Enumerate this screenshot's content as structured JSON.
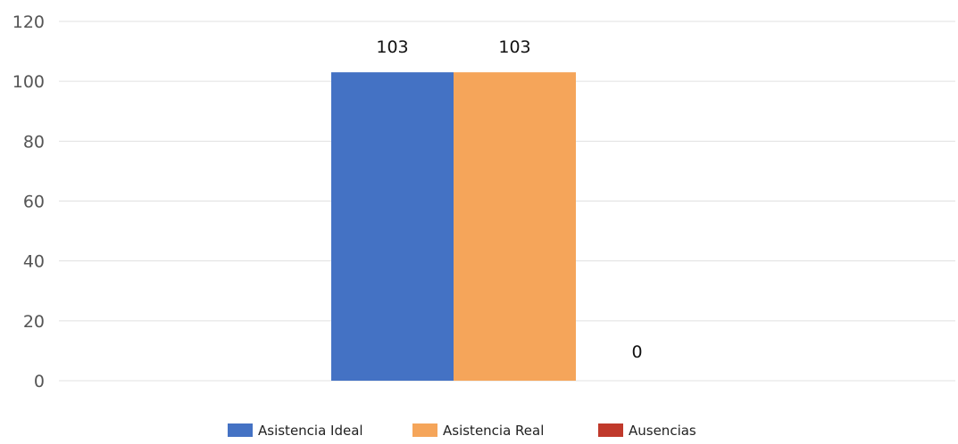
{
  "chart_data": {
    "type": "bar",
    "categories": [
      ""
    ],
    "series": [
      {
        "name": "Asistencia Ideal",
        "color": "#4472C4",
        "values": [
          103
        ]
      },
      {
        "name": "Asistencia Real",
        "color": "#F5A55A",
        "values": [
          103
        ]
      },
      {
        "name": "Ausencias",
        "color": "#C0392B",
        "values": [
          0
        ]
      }
    ],
    "data_labels": [
      "103",
      "103",
      "0"
    ],
    "ylim": [
      0,
      120
    ],
    "yticks": [
      0,
      20,
      40,
      60,
      80,
      100,
      120
    ],
    "grid": true,
    "legend_position": "bottom-center"
  },
  "colors": {
    "gridline": "#e0e0e0",
    "axis_text": "#555555",
    "label_text": "#111111"
  }
}
